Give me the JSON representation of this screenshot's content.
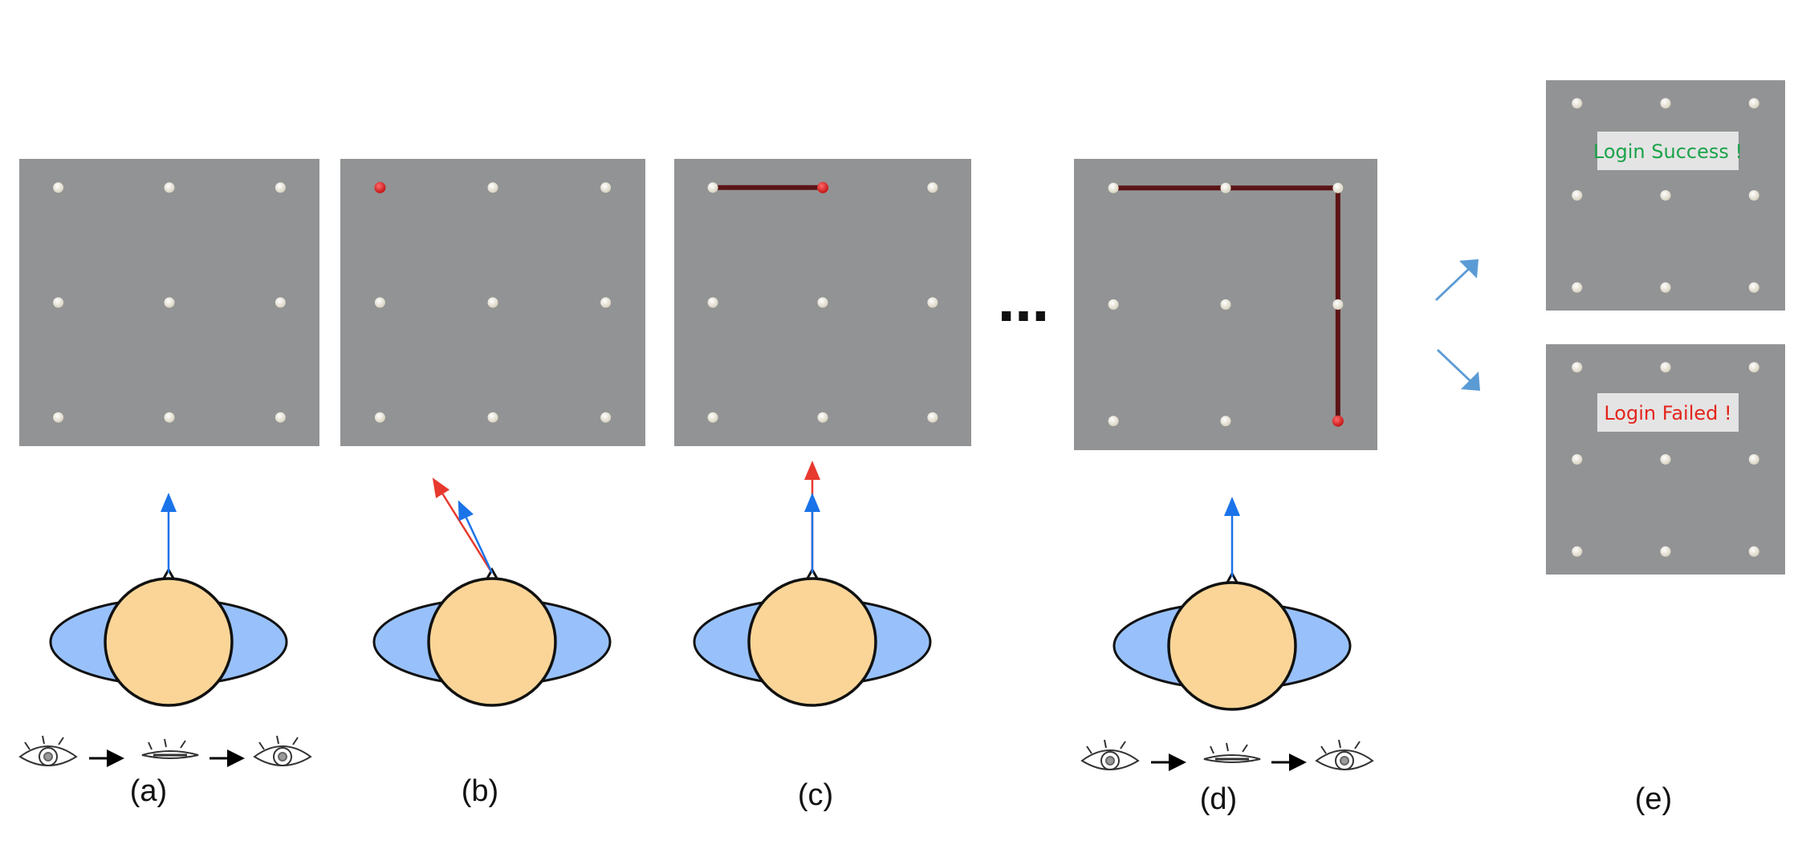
{
  "figure": {
    "colors": {
      "panel": "#929394",
      "dot": "#f3efe2",
      "active_dot": "#e02525",
      "path": "#5b1416",
      "head": "#fad597",
      "shoulders": "#98c1fb",
      "gaze_current": "#1a73e8",
      "gaze_previous": "#e8392e",
      "flow_arrow": "#5b9bd5",
      "success": "#1aa34a",
      "failure": "#e3241b"
    },
    "stages": [
      {
        "label": "(a)",
        "active_dot": null,
        "path": [],
        "gaze_angle": 0,
        "previous_gaze_angle": null,
        "blink_sequence": true
      },
      {
        "label": "(b)",
        "active_dot": 0,
        "path": [],
        "gaze_angle": -25,
        "previous_gaze_angle": -32,
        "blink_sequence": false
      },
      {
        "label": "(c)",
        "active_dot": 1,
        "path": [
          0,
          1
        ],
        "gaze_angle": 0,
        "previous_gaze_angle": 0,
        "blink_sequence": false
      },
      {
        "label": "(d)",
        "active_dot": 8,
        "path": [
          0,
          1,
          2,
          5,
          8
        ],
        "gaze_angle": 0,
        "previous_gaze_angle": null,
        "blink_sequence": true
      }
    ],
    "ellipsis": "…",
    "outcome": {
      "label": "(e)",
      "success_text": "Login Success !",
      "failure_text": "Login Failed !"
    }
  }
}
